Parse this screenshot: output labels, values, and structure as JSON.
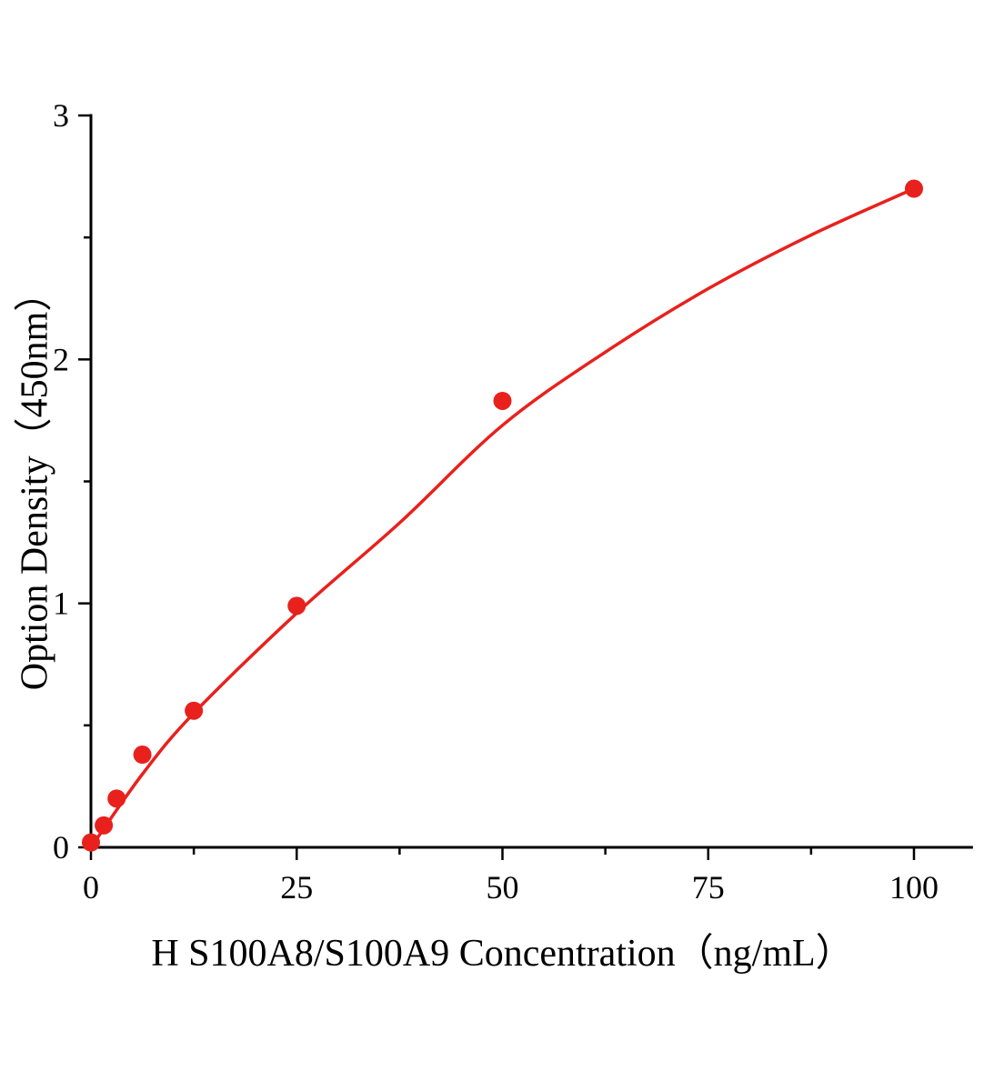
{
  "figure": {
    "background": "#ffffff",
    "axis_color": "#000000"
  },
  "chart_data": {
    "type": "scatter",
    "title": "",
    "xlabel": "H S100A8/S100A9 Concentration（ng/mL）",
    "ylabel": "Option Density（450nm）",
    "xlim": [
      0,
      107
    ],
    "ylim": [
      0,
      3
    ],
    "x_ticks": [
      0,
      25,
      50,
      75,
      100
    ],
    "x_minor_ticks": [
      12.5,
      37.5,
      62.5,
      87.5
    ],
    "y_ticks": [
      0,
      1,
      2,
      3
    ],
    "y_minor_ticks": [
      0.5,
      1.5,
      2.5
    ],
    "grid": false,
    "legend": "none",
    "series": [
      {
        "name": "standard-points",
        "type": "scatter",
        "color": "#e8211d",
        "points": [
          [
            0,
            0.02
          ],
          [
            1.56,
            0.09
          ],
          [
            3.12,
            0.2
          ],
          [
            6.25,
            0.38
          ],
          [
            12.5,
            0.56
          ],
          [
            25,
            0.99
          ],
          [
            50,
            1.83
          ],
          [
            100,
            2.7
          ]
        ]
      },
      {
        "name": "fit-curve",
        "type": "line",
        "color": "#e8211d",
        "points": [
          [
            0,
            0.0
          ],
          [
            6.25,
            0.3
          ],
          [
            12.5,
            0.55
          ],
          [
            25,
            0.96
          ],
          [
            37.5,
            1.33
          ],
          [
            50,
            1.73
          ],
          [
            62.5,
            2.03
          ],
          [
            75,
            2.29
          ],
          [
            87.5,
            2.51
          ],
          [
            100,
            2.7
          ]
        ]
      }
    ]
  }
}
